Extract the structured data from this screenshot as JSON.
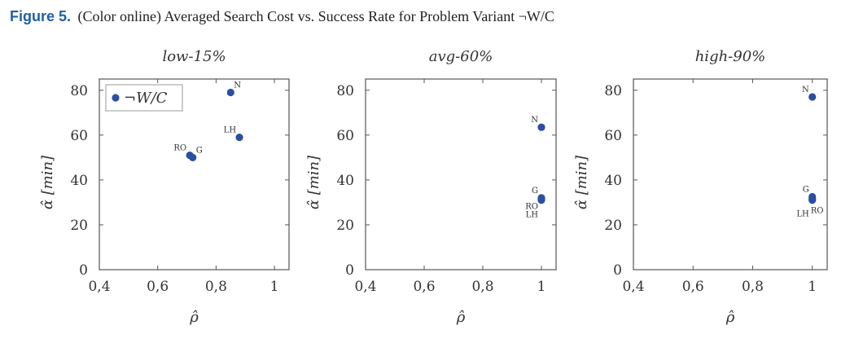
{
  "figure": {
    "label": "Figure 5.",
    "caption": "(Color online) Averaged Search Cost vs. Success Rate for Problem Variant ¬W/C"
  },
  "colors": {
    "point": "#2a4fa3",
    "axis": "#555555"
  },
  "chart_data": [
    {
      "type": "scatter",
      "title": "low-15%",
      "xlabel": "ρ̂",
      "ylabel": "α̂ [min]",
      "xlim": [
        0.4,
        1.05
      ],
      "ylim": [
        0,
        85
      ],
      "x_ticks": [
        0.4,
        0.6,
        0.8,
        1
      ],
      "x_tick_labels": [
        "0,4",
        "0,6",
        "0,8",
        "1"
      ],
      "y_ticks": [
        0,
        20,
        40,
        60,
        80
      ],
      "y_tick_labels": [
        "0",
        "20",
        "40",
        "60",
        "80"
      ],
      "legend": {
        "entries": [
          "¬W/C"
        ],
        "placement": "top-left"
      },
      "series": [
        {
          "name": "¬W/C",
          "points": [
            {
              "label": "N",
              "x": 0.85,
              "y": 79,
              "label_pos": "above-right"
            },
            {
              "label": "LH",
              "x": 0.88,
              "y": 59,
              "label_pos": "above-left"
            },
            {
              "label": "RO",
              "x": 0.71,
              "y": 51,
              "label_pos": "above-left"
            },
            {
              "label": "G",
              "x": 0.72,
              "y": 50,
              "label_pos": "above-right"
            }
          ]
        }
      ]
    },
    {
      "type": "scatter",
      "title": "avg-60%",
      "xlabel": "ρ̂",
      "ylabel": "α̂ [min]",
      "xlim": [
        0.4,
        1.05
      ],
      "ylim": [
        0,
        85
      ],
      "x_ticks": [
        0.4,
        0.6,
        0.8,
        1
      ],
      "x_tick_labels": [
        "0,4",
        "0,6",
        "0,8",
        "1"
      ],
      "y_ticks": [
        0,
        20,
        40,
        60,
        80
      ],
      "y_tick_labels": [
        "0",
        "20",
        "40",
        "60",
        "80"
      ],
      "series": [
        {
          "name": "¬W/C",
          "points": [
            {
              "label": "N",
              "x": 1.0,
              "y": 63.5,
              "label_pos": "above-left"
            },
            {
              "label": "G",
              "x": 1.0,
              "y": 32,
              "label_pos": "above-left"
            },
            {
              "label": "RO",
              "x": 1.0,
              "y": 31.5,
              "label_pos": "below-left"
            },
            {
              "label": "LH",
              "x": 1.0,
              "y": 31,
              "label_pos": "below-left-far"
            }
          ]
        }
      ]
    },
    {
      "type": "scatter",
      "title": "high-90%",
      "xlabel": "ρ̂",
      "ylabel": "α̂ [min]",
      "xlim": [
        0.4,
        1.05
      ],
      "ylim": [
        0,
        85
      ],
      "x_ticks": [
        0.4,
        0.6,
        0.8,
        1
      ],
      "x_tick_labels": [
        "0,4",
        "0,6",
        "0,8",
        "1"
      ],
      "y_ticks": [
        0,
        20,
        40,
        60,
        80
      ],
      "y_tick_labels": [
        "0",
        "20",
        "40",
        "60",
        "80"
      ],
      "series": [
        {
          "name": "¬W/C",
          "points": [
            {
              "label": "N",
              "x": 1.0,
              "y": 77,
              "label_pos": "above-left"
            },
            {
              "label": "G",
              "x": 1.0,
              "y": 32.5,
              "label_pos": "above-left"
            },
            {
              "label": "LH",
              "x": 1.0,
              "y": 31.5,
              "label_pos": "below-left-far"
            },
            {
              "label": "RO",
              "x": 1.0,
              "y": 31,
              "label_pos": "below-right"
            }
          ]
        }
      ]
    }
  ]
}
